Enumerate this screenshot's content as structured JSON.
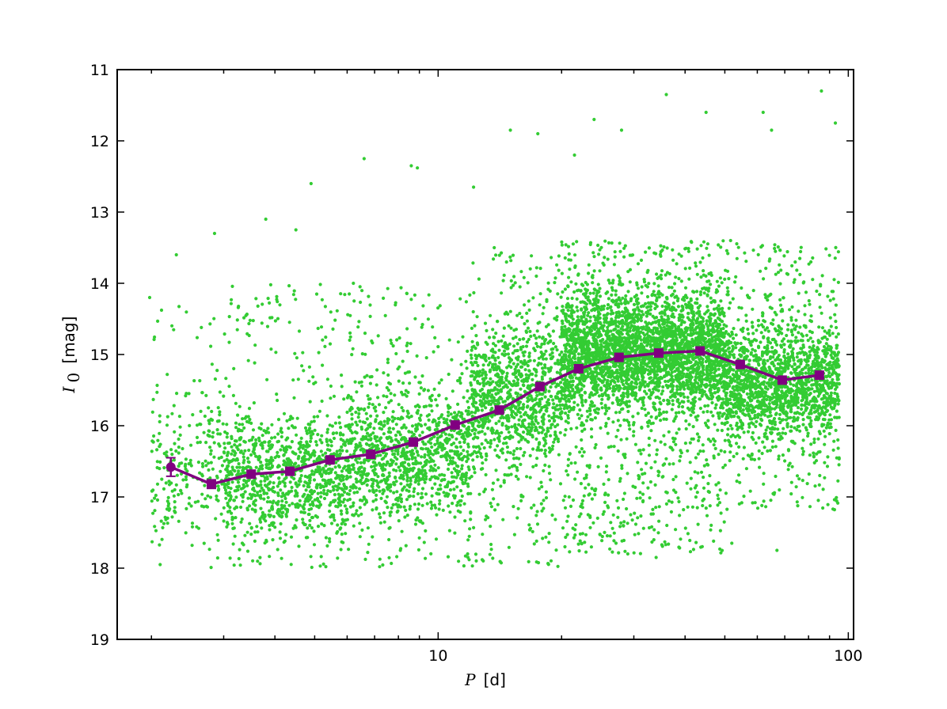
{
  "chart_data": {
    "type": "scatter",
    "title": "",
    "xlabel": {
      "symbol": "P",
      "unit": "[d]"
    },
    "ylabel": {
      "symbol": "I",
      "subscript": "0",
      "unit": "[mag]"
    },
    "xscale": "log",
    "xlim": [
      1.65,
      103
    ],
    "ylim": [
      19,
      11
    ],
    "y_inverted": true,
    "grid": false,
    "legend": "none",
    "xticks": [
      {
        "value": 10,
        "label": "10"
      },
      {
        "value": 100,
        "label": "100"
      }
    ],
    "yticks": [
      {
        "value": 11,
        "label": "11"
      },
      {
        "value": 12,
        "label": "12"
      },
      {
        "value": 13,
        "label": "13"
      },
      {
        "value": 14,
        "label": "14"
      },
      {
        "value": 15,
        "label": "15"
      },
      {
        "value": 16,
        "label": "16"
      },
      {
        "value": 17,
        "label": "17"
      },
      {
        "value": 18,
        "label": "18"
      },
      {
        "value": 19,
        "label": "19"
      }
    ],
    "colors": {
      "scatter": "#33cc33",
      "binned": "#800080"
    },
    "scatter_density_bands": [
      {
        "x_range": [
          2.0,
          3.0
        ],
        "y_center": 16.6,
        "y_spread": 0.9,
        "weight": 0.4,
        "y_range": [
          14.2,
          18.0
        ]
      },
      {
        "x_range": [
          3.0,
          6.0
        ],
        "y_center": 16.7,
        "y_spread": 0.75,
        "weight": 1.0,
        "y_range": [
          14.0,
          18.0
        ]
      },
      {
        "x_range": [
          6.0,
          12.0
        ],
        "y_center": 16.4,
        "y_spread": 0.8,
        "weight": 1.1,
        "y_range": [
          14.0,
          18.0
        ]
      },
      {
        "x_range": [
          12.0,
          20.0
        ],
        "y_center": 15.6,
        "y_spread": 0.85,
        "weight": 1.4,
        "y_range": [
          13.5,
          18.0
        ]
      },
      {
        "x_range": [
          20.0,
          50.0
        ],
        "y_center": 15.0,
        "y_spread": 0.75,
        "weight": 2.6,
        "y_range": [
          13.4,
          17.8
        ]
      },
      {
        "x_range": [
          50.0,
          95.0
        ],
        "y_center": 15.4,
        "y_spread": 0.7,
        "weight": 1.8,
        "y_range": [
          13.4,
          17.2
        ]
      }
    ],
    "scatter_outliers": [
      {
        "x": 1.98,
        "y": 14.2
      },
      {
        "x": 2.3,
        "y": 13.6
      },
      {
        "x": 2.85,
        "y": 13.3
      },
      {
        "x": 3.8,
        "y": 13.1
      },
      {
        "x": 4.5,
        "y": 13.25
      },
      {
        "x": 4.9,
        "y": 12.6
      },
      {
        "x": 6.6,
        "y": 12.25
      },
      {
        "x": 8.6,
        "y": 12.35
      },
      {
        "x": 8.9,
        "y": 12.38
      },
      {
        "x": 12.2,
        "y": 12.65
      },
      {
        "x": 15.0,
        "y": 11.85
      },
      {
        "x": 17.5,
        "y": 11.9
      },
      {
        "x": 21.5,
        "y": 12.2
      },
      {
        "x": 24.0,
        "y": 11.7
      },
      {
        "x": 28.0,
        "y": 11.85
      },
      {
        "x": 36.0,
        "y": 11.35
      },
      {
        "x": 45.0,
        "y": 11.6
      },
      {
        "x": 62.0,
        "y": 11.6
      },
      {
        "x": 65.0,
        "y": 11.85
      },
      {
        "x": 86.0,
        "y": 11.3
      },
      {
        "x": 93.0,
        "y": 11.75
      },
      {
        "x": 34.0,
        "y": 17.85
      },
      {
        "x": 29.0,
        "y": 17.8
      },
      {
        "x": 52.0,
        "y": 17.65
      },
      {
        "x": 67.0,
        "y": 17.75
      },
      {
        "x": 7.2,
        "y": 17.98
      },
      {
        "x": 2.1,
        "y": 17.95
      }
    ],
    "series": [
      {
        "name": "",
        "marker_first": "circle",
        "marker": "square",
        "x": [
          2.23,
          2.8,
          3.5,
          4.35,
          5.45,
          6.85,
          8.7,
          11.0,
          14.1,
          17.7,
          22.0,
          27.6,
          34.5,
          43.5,
          54.5,
          69.0,
          85.0
        ],
        "y": [
          16.58,
          16.82,
          16.68,
          16.64,
          16.48,
          16.4,
          16.23,
          15.99,
          15.78,
          15.45,
          15.2,
          15.04,
          14.98,
          14.95,
          15.14,
          15.36,
          15.29
        ],
        "yerr": [
          0.13,
          0.06,
          0.04,
          0.03,
          0.03,
          0.03,
          0.03,
          0.03,
          0.03,
          0.03,
          0.02,
          0.02,
          0.02,
          0.02,
          0.02,
          0.03,
          0.04
        ]
      }
    ]
  }
}
